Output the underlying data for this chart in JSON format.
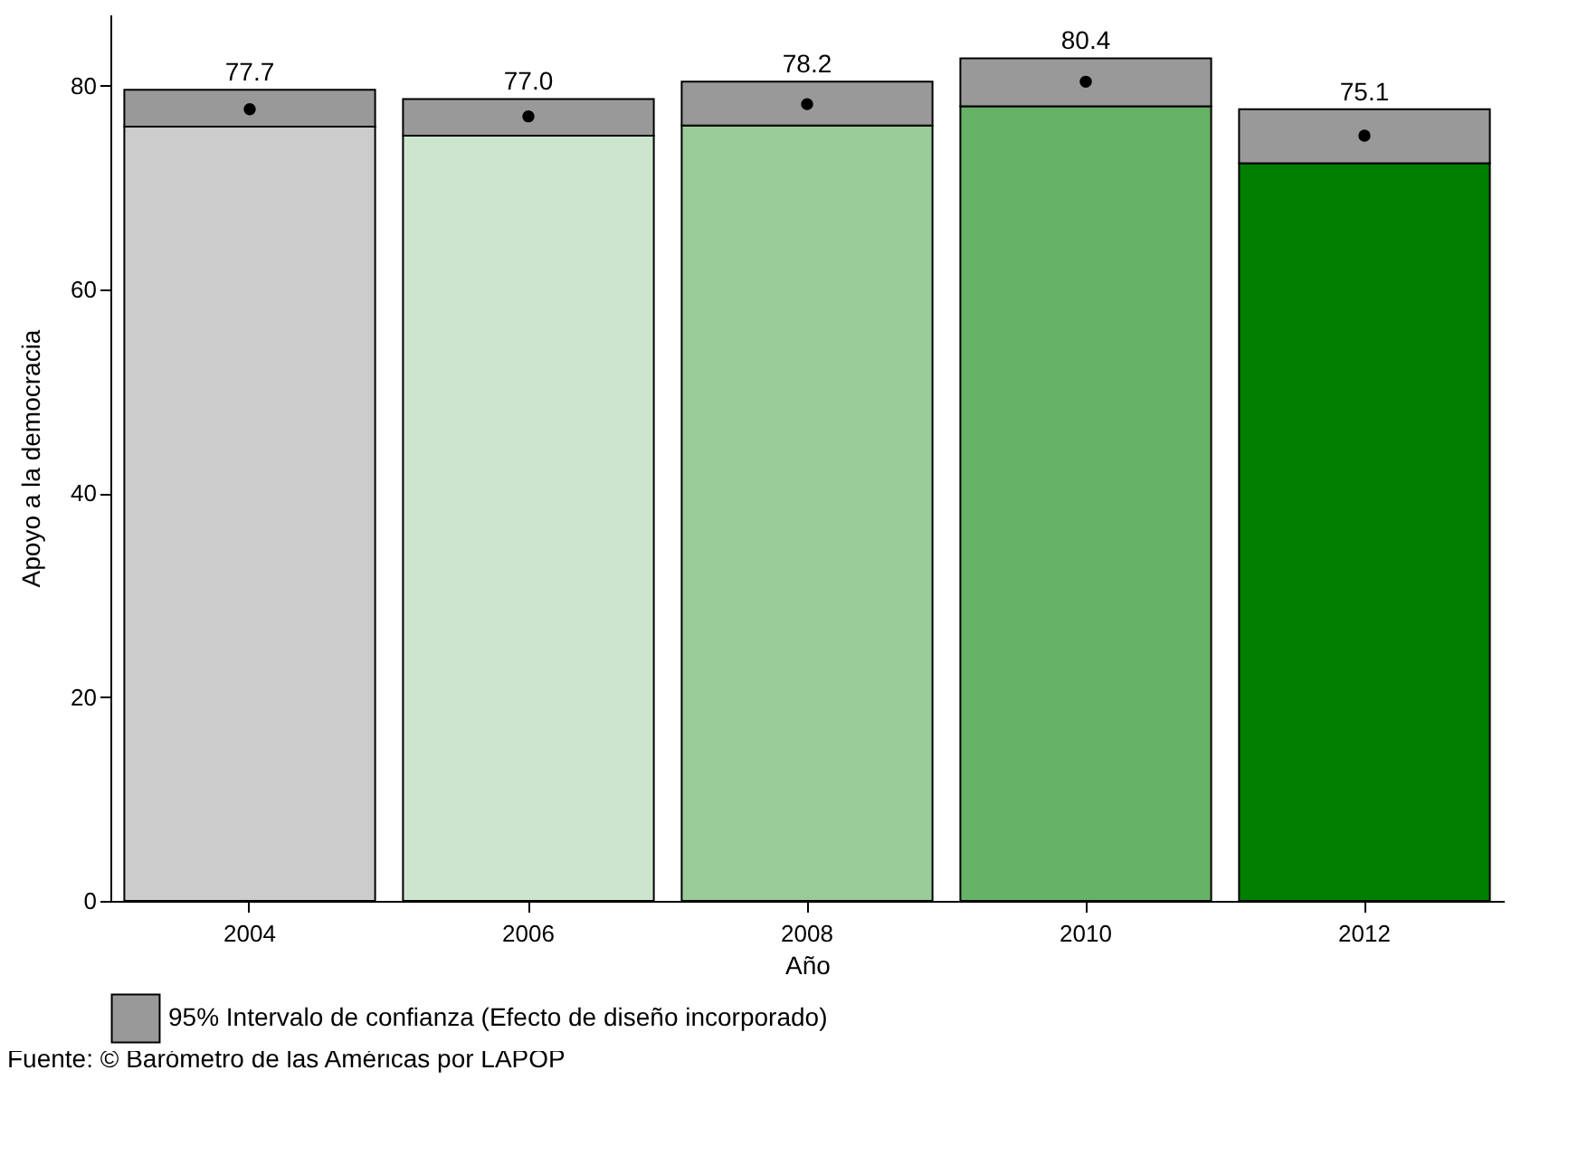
{
  "chart_data": {
    "type": "bar",
    "stacked": true,
    "xlabel": "Año",
    "ylabel": "Apoyo a la democracia",
    "categories": [
      "2004",
      "2006",
      "2008",
      "2010",
      "2012"
    ],
    "series": [
      {
        "colors": [
          "#cccccc",
          "#cce5cc",
          "#99cc99",
          "#66b266",
          "#007f00"
        ],
        "values": [
          76.0,
          75.1,
          76.1,
          78.0,
          72.4
        ]
      },
      {
        "name": "95% Intervalo de confianza (Efecto de diseño incorporado)",
        "color": "#999999",
        "values": [
          3.6,
          3.6,
          4.3,
          4.7,
          5.3
        ]
      },
      {
        "type": "scatter",
        "color": "#000000",
        "values": [
          77.7,
          77.0,
          78.2,
          80.4,
          75.1
        ],
        "value_labels": [
          "77.7",
          "77.0",
          "78.2",
          "80.4",
          "75.1"
        ]
      }
    ],
    "ylim": [
      0,
      87
    ],
    "yticks": [
      0,
      20,
      40,
      60,
      80
    ],
    "grid": false,
    "legend": "bottom",
    "annotations": [
      "Fuente: © Barómetro de las Américas por LAPOP"
    ]
  }
}
